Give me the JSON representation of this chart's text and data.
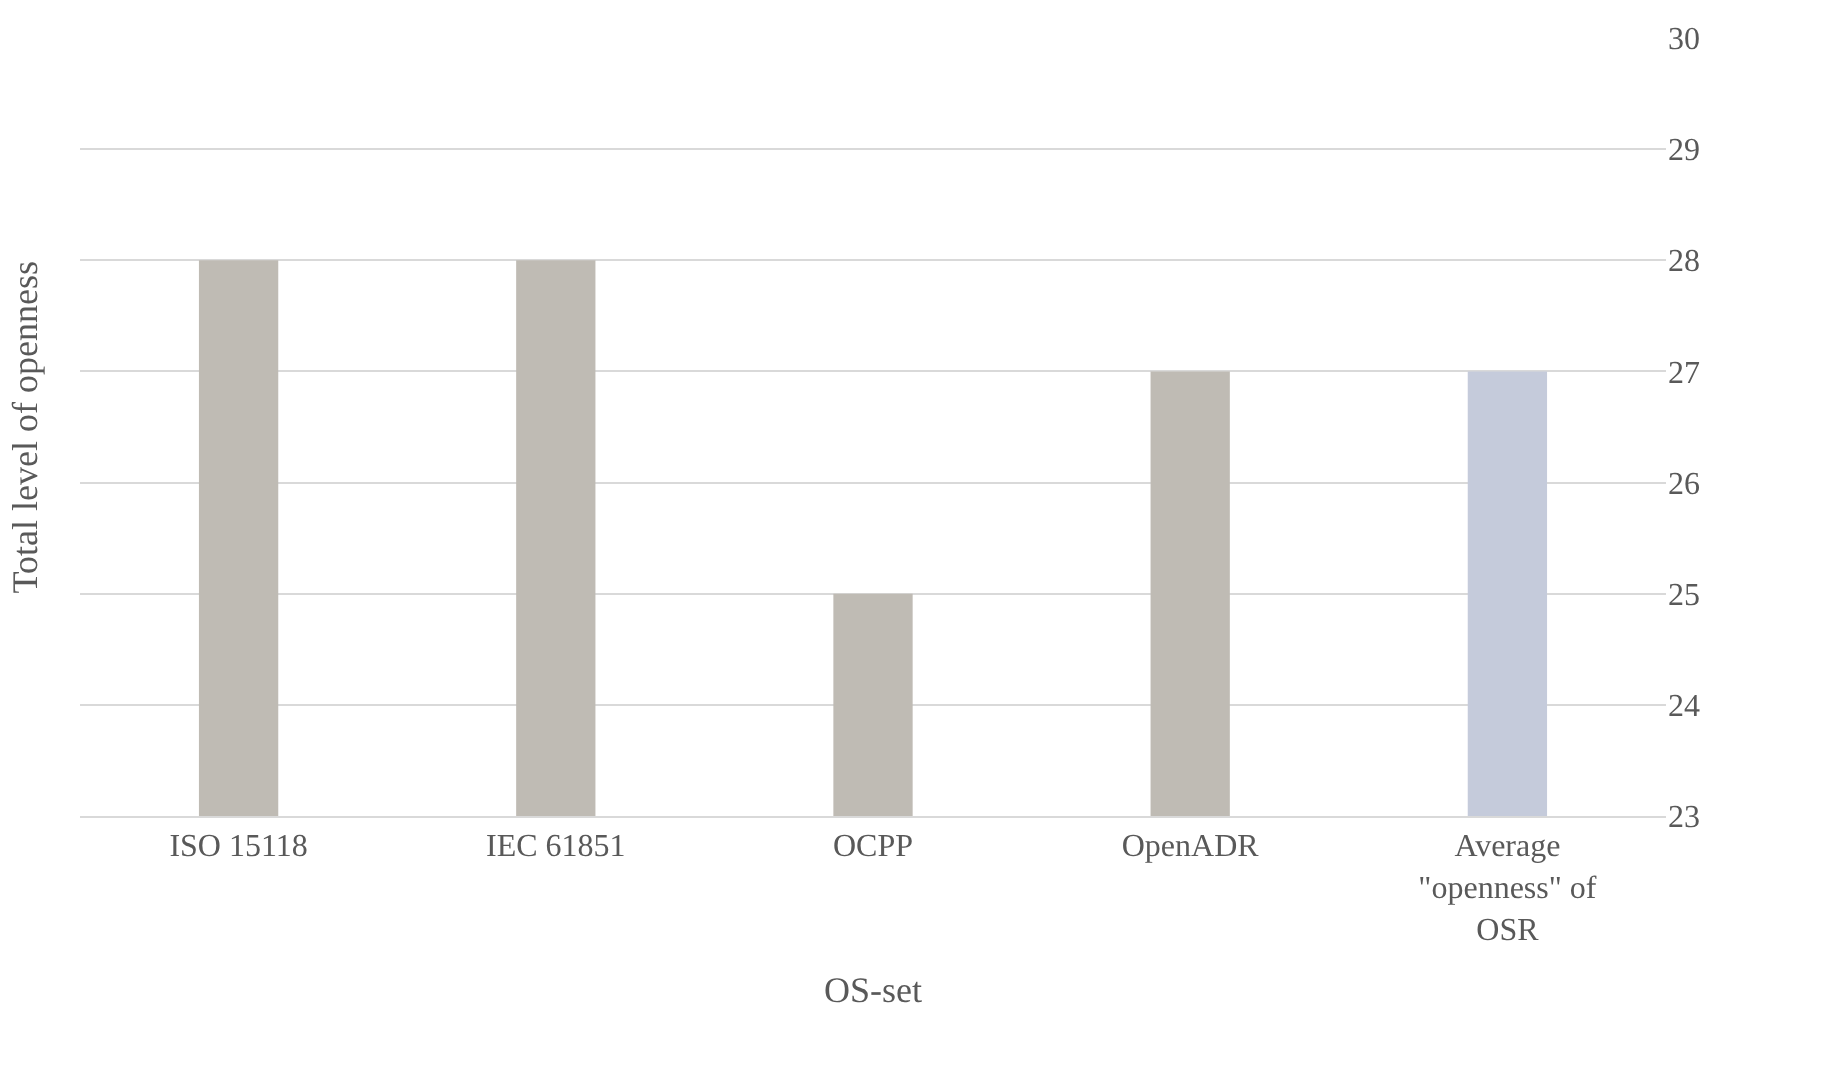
{
  "chart_data": {
    "type": "bar",
    "xlabel": "OS-set",
    "ylabel": "Total level of openness",
    "categories": [
      "ISO 15118",
      "IEC 61851",
      "OCPP",
      "OpenADR",
      "Average \"openness\" of OSR"
    ],
    "values": [
      28,
      28,
      25,
      27,
      27
    ],
    "colors": [
      "#bfbbb4",
      "#bfbbb4",
      "#bfbbb4",
      "#bfbbb4",
      "#c5cbdb"
    ],
    "ylim": [
      23,
      30
    ],
    "yticks": [
      23,
      24,
      25,
      26,
      27,
      28,
      29,
      30
    ],
    "grid": "y"
  }
}
